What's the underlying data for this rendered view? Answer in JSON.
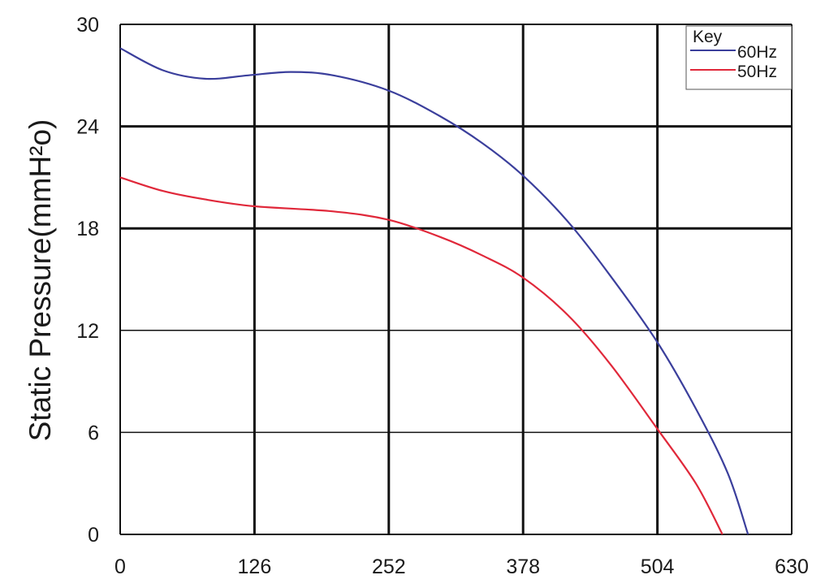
{
  "chart_data": {
    "type": "line",
    "title": "",
    "xlabel": "",
    "ylabel": "Static Pressure(mmH²o)",
    "xlim": [
      0,
      630
    ],
    "ylim": [
      0,
      30
    ],
    "x_ticks": [
      "0",
      "126",
      "252",
      "378",
      "504",
      "630"
    ],
    "y_ticks": [
      "0",
      "6",
      "12",
      "18",
      "24",
      "30"
    ],
    "grid": true,
    "legend": {
      "title": "Key",
      "position": "top-right"
    },
    "series": [
      {
        "name": "60Hz",
        "color": "#3b3f9c",
        "points": [
          [
            0,
            28.6
          ],
          [
            40,
            27.3
          ],
          [
            80,
            26.8
          ],
          [
            120,
            27.0
          ],
          [
            160,
            27.2
          ],
          [
            200,
            27.0
          ],
          [
            252,
            26.1
          ],
          [
            300,
            24.6
          ],
          [
            340,
            23.0
          ],
          [
            378,
            21.1
          ],
          [
            420,
            18.4
          ],
          [
            460,
            15.2
          ],
          [
            504,
            11.3
          ],
          [
            540,
            7.4
          ],
          [
            570,
            3.6
          ],
          [
            589,
            0
          ]
        ]
      },
      {
        "name": "50Hz",
        "color": "#e0283a",
        "points": [
          [
            0,
            21.0
          ],
          [
            40,
            20.2
          ],
          [
            80,
            19.7
          ],
          [
            126,
            19.3
          ],
          [
            200,
            19.0
          ],
          [
            252,
            18.5
          ],
          [
            300,
            17.5
          ],
          [
            340,
            16.4
          ],
          [
            378,
            15.1
          ],
          [
            420,
            12.9
          ],
          [
            460,
            10.0
          ],
          [
            504,
            6.2
          ],
          [
            540,
            3.0
          ],
          [
            565,
            0
          ]
        ]
      }
    ]
  }
}
